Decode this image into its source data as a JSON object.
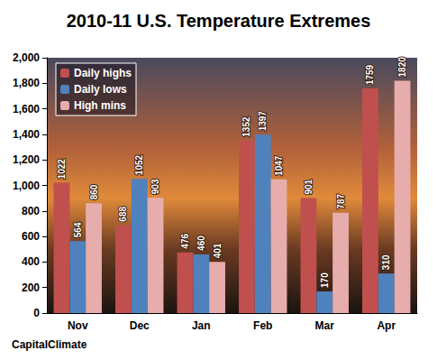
{
  "chart_data": {
    "type": "bar",
    "title": "2010-11 U.S. Temperature Extremes",
    "source": "CapitalClimate",
    "categories": [
      "Nov",
      "Dec",
      "Jan",
      "Feb",
      "Mar",
      "Apr"
    ],
    "series": [
      {
        "name": "Daily highs",
        "color": "#c0504d",
        "values": [
          1022,
          688,
          476,
          1352,
          901,
          1759
        ]
      },
      {
        "name": "Daily lows",
        "color": "#4f81bd",
        "values": [
          564,
          1052,
          460,
          1397,
          170,
          310
        ]
      },
      {
        "name": "High mins",
        "color": "#e6adac",
        "values": [
          860,
          903,
          401,
          1047,
          787,
          1820
        ]
      }
    ],
    "ylim": [
      0,
      2000
    ],
    "yticks": [
      0,
      200,
      400,
      600,
      800,
      {
        "value": 1000,
        "label": "1,000"
      },
      {
        "value": 1200,
        "label": "1,200"
      },
      {
        "value": 1400,
        "label": "1,400"
      },
      {
        "value": 1600,
        "label": "1,600"
      },
      {
        "value": 1800,
        "label": "1,800"
      },
      {
        "value": 2000,
        "label": "2,000"
      }
    ],
    "grid": false,
    "legend": "top-left",
    "data_labels": true
  }
}
